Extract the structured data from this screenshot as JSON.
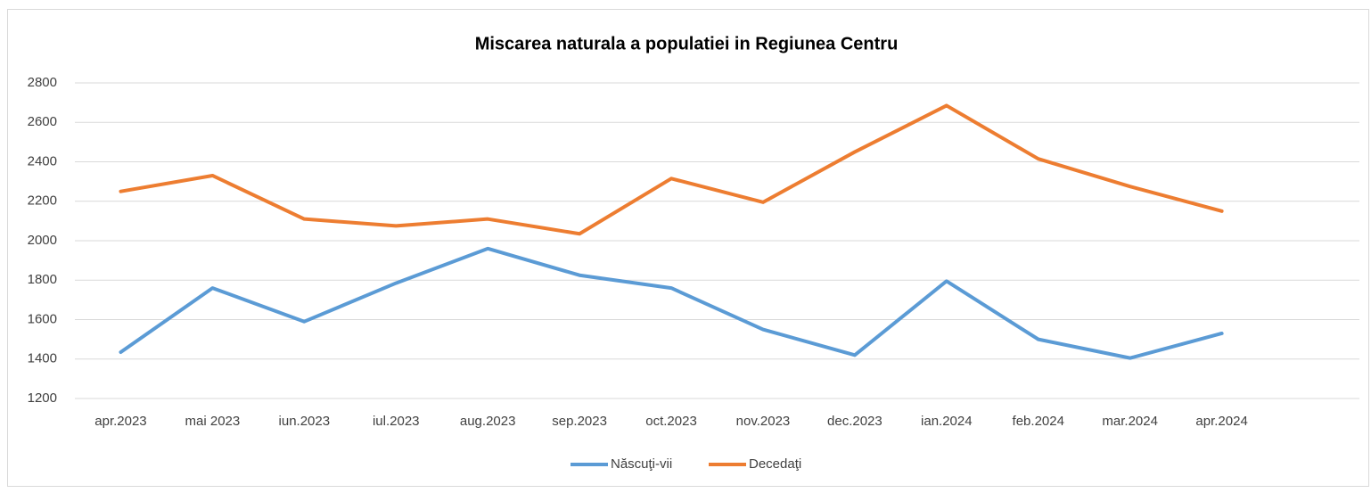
{
  "chart_data": {
    "type": "line",
    "title": "Miscarea naturala a populatiei in Regiunea Centru",
    "categories": [
      "apr.2023",
      "mai 2023",
      "iun.2023",
      "iul.2023",
      "aug.2023",
      "sep.2023",
      "oct.2023",
      "nov.2023",
      "dec.2023",
      "ian.2024",
      "feb.2024",
      "mar.2024",
      "apr.2024",
      null
    ],
    "series": [
      {
        "name": "Născuţi-vii",
        "color": "#5b9bd5",
        "values": [
          1435,
          1760,
          1590,
          1785,
          1960,
          1825,
          1760,
          1550,
          1420,
          1795,
          1500,
          1405,
          1530,
          null
        ]
      },
      {
        "name": "Decedaţi",
        "color": "#ed7d31",
        "values": [
          2250,
          2330,
          2110,
          2075,
          2110,
          2035,
          2315,
          2195,
          2450,
          2685,
          2415,
          2275,
          2150,
          null
        ]
      }
    ],
    "ylim": [
      1200,
      2800
    ],
    "yticks": [
      1200,
      1400,
      1600,
      1800,
      2000,
      2200,
      2400,
      2600,
      2800
    ],
    "grid": true,
    "legend": "bottom"
  }
}
